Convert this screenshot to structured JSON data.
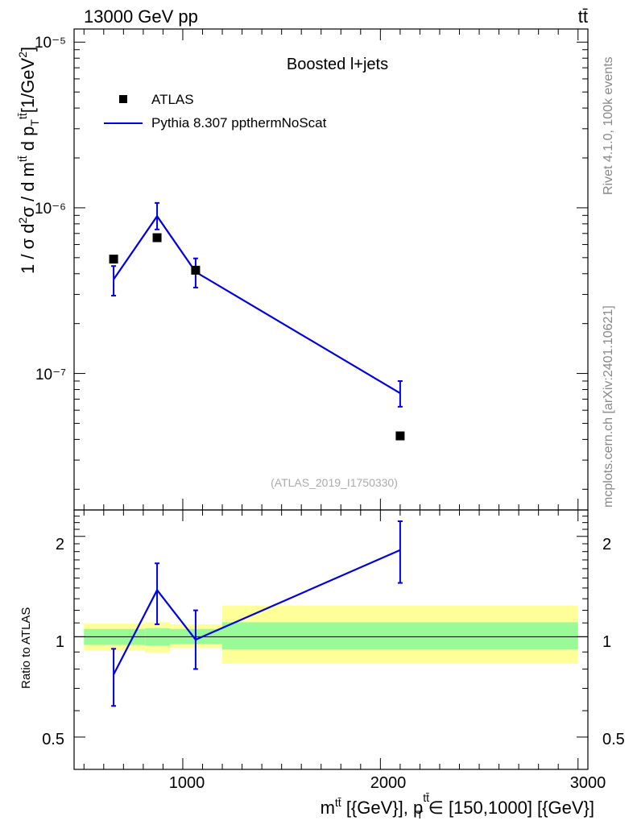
{
  "header": {
    "energy_label": "13000 GeV pp",
    "process_label": "tt̄"
  },
  "side": {
    "rivet_label": "Rivet 4.1.0,  100k events",
    "mcplots_label": "mcplots.cern.ch [arXiv:2401.10621]"
  },
  "main": {
    "ylabel": "1 / σ d²σ / d mtt̄ d pTtt̄ [1/GeV²]",
    "ylabel_parts": {
      "prefix": "1 / σ d",
      "sup2": "2",
      "mid": "σ / d  m",
      "tt1": "tt̄",
      "dp": " d p",
      "T": "T",
      "tt2": "tt̄",
      "bracket": "[1/GeV",
      "close": "]"
    },
    "title": "Boosted l+jets",
    "watermark": "(ATLAS_2019_I1750330)",
    "ytick_labels": [
      "10⁻⁵",
      "10⁻⁶",
      "10⁻⁷"
    ]
  },
  "legend": {
    "data_label": "ATLAS",
    "mc_label": "Pythia 8.307 ppthermNoScat"
  },
  "ratio": {
    "ylabel": "Ratio to ATLAS",
    "ytick_labels": [
      "2",
      "1",
      "0.5"
    ]
  },
  "xaxis": {
    "label": "mtt̄ [{GeV}], pTtt̄ ∈ [150,1000] [{GeV}]",
    "label_parts": {
      "m": "m",
      "tt1": "tt̄",
      "rest1": " [{GeV}], p",
      "tt2": "tt̄",
      "T": "T",
      "rest2": " ∈ [150,1000] [{GeV}]"
    },
    "tick_labels": [
      "1000",
      "2000",
      "3000"
    ]
  },
  "colors": {
    "data": "#000000",
    "mc": "#0000e6",
    "band_inner": "#98fb98",
    "band_outer": "#ffff99"
  },
  "chart_data": [
    {
      "type": "scatter",
      "title": "Boosted l+jets",
      "xlabel": "mtt̄ [GeV]",
      "ylabel": "1/σ d²σ / d mtt̄ d pTtt̄ [1/GeV²]",
      "yscale": "log",
      "xlim": [
        450,
        3050
      ],
      "ylim": [
        1.5e-08,
        1.2e-05
      ],
      "series": [
        {
          "name": "ATLAS",
          "kind": "markers",
          "x": [
            650,
            870,
            1065,
            2100
          ],
          "y": [
            4.9e-07,
            6.6e-07,
            4.2e-07,
            4.2e-08
          ]
        },
        {
          "name": "Pythia 8.307 ppthermNoScat",
          "kind": "line",
          "x": [
            650,
            870,
            1065,
            2100
          ],
          "y": [
            3.7e-07,
            8.9e-07,
            4.1e-07,
            7.6e-08
          ],
          "err_low": [
            2.95e-07,
            7.4e-07,
            3.3e-07,
            6.3e-08
          ],
          "err_high": [
            4.45e-07,
            1.07e-06,
            4.95e-07,
            9e-08
          ]
        }
      ]
    },
    {
      "type": "line",
      "title": "Ratio to ATLAS",
      "xlabel": "mtt̄ [GeV]",
      "ylabel": "Ratio to ATLAS",
      "yscale": "log",
      "xlim": [
        450,
        3050
      ],
      "ylim": [
        0.4,
        2.4
      ],
      "series": [
        {
          "name": "Pythia 8.307 ppthermNoScat",
          "kind": "line",
          "x": [
            650,
            870,
            1065,
            2100
          ],
          "y": [
            0.77,
            1.38,
            0.98,
            1.82
          ],
          "err_low": [
            0.62,
            1.09,
            0.8,
            1.45
          ],
          "err_high": [
            0.92,
            1.66,
            1.2,
            2.22
          ]
        }
      ],
      "bands": [
        {
          "x0": 500,
          "x1": 810,
          "inner": [
            0.945,
            1.055
          ],
          "outer": [
            0.91,
            1.095
          ]
        },
        {
          "x0": 810,
          "x1": 935,
          "inner": [
            0.94,
            1.06
          ],
          "outer": [
            0.895,
            1.105
          ]
        },
        {
          "x0": 935,
          "x1": 1200,
          "inner": [
            0.95,
            1.055
          ],
          "outer": [
            0.925,
            1.09
          ]
        },
        {
          "x0": 1200,
          "x1": 3000,
          "inner": [
            0.915,
            1.105
          ],
          "outer": [
            0.83,
            1.24
          ]
        }
      ],
      "reference": 1
    }
  ]
}
